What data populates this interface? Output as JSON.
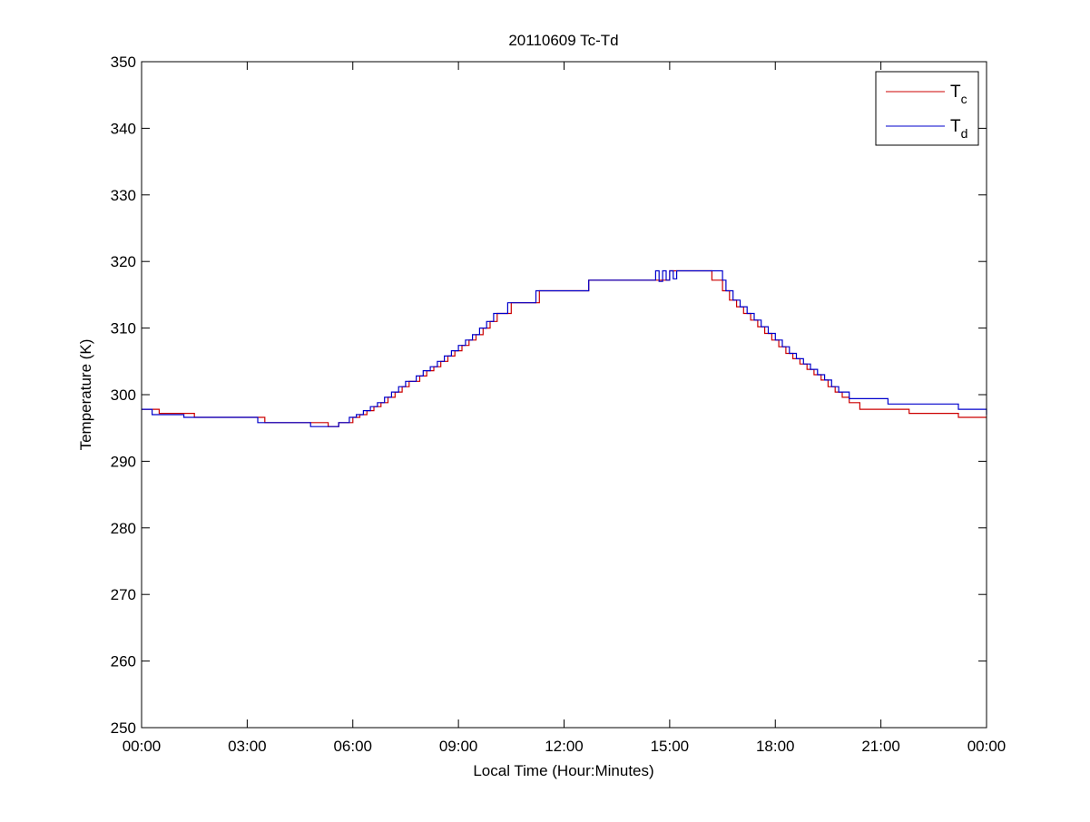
{
  "chart_data": {
    "type": "line",
    "title": "20110609 Tc-Td",
    "xlabel": "Local Time (Hour:Minutes)",
    "ylabel": "Temperature (K)",
    "xlim_hours": [
      0,
      24
    ],
    "ylim": [
      250,
      350
    ],
    "x_ticks": [
      {
        "value": 0,
        "label": "00:00"
      },
      {
        "value": 3,
        "label": "03:00"
      },
      {
        "value": 6,
        "label": "06:00"
      },
      {
        "value": 9,
        "label": "09:00"
      },
      {
        "value": 12,
        "label": "12:00"
      },
      {
        "value": 15,
        "label": "15:00"
      },
      {
        "value": 18,
        "label": "18:00"
      },
      {
        "value": 21,
        "label": "21:00"
      },
      {
        "value": 24,
        "label": "00:00"
      }
    ],
    "y_ticks": [
      250,
      260,
      270,
      280,
      290,
      300,
      310,
      320,
      330,
      340,
      350
    ],
    "grid": false,
    "legend": {
      "position": "top-right",
      "entries": [
        {
          "series": 0,
          "main": "T",
          "sub": "c"
        },
        {
          "series": 1,
          "main": "T",
          "sub": "d"
        }
      ]
    },
    "step": true,
    "series": [
      {
        "name": "Tc",
        "color": "#cc0000",
        "x": [
          0,
          0.25,
          0.5,
          1.2,
          1.5,
          3.2,
          3.5,
          4.8,
          5.3,
          5.6,
          6.0,
          6.2,
          6.4,
          6.6,
          6.8,
          7.0,
          7.2,
          7.4,
          7.6,
          7.9,
          8.1,
          8.3,
          8.5,
          8.7,
          8.9,
          9.1,
          9.3,
          9.5,
          9.7,
          9.9,
          10.1,
          10.5,
          11.3,
          12.7,
          15.0,
          16.0,
          16.2,
          16.5,
          16.7,
          16.9,
          17.1,
          17.3,
          17.5,
          17.7,
          17.9,
          18.1,
          18.3,
          18.5,
          18.7,
          18.9,
          19.1,
          19.3,
          19.5,
          19.7,
          19.9,
          20.1,
          20.4,
          21.2,
          21.8,
          23.0,
          23.2,
          24.0
        ],
        "y": [
          297.8,
          297.8,
          297.2,
          297.2,
          296.6,
          296.6,
          295.8,
          295.8,
          295.2,
          295.8,
          296.6,
          297.0,
          297.6,
          298.2,
          298.8,
          299.6,
          300.4,
          301.2,
          302.0,
          302.8,
          303.6,
          304.2,
          305.0,
          305.8,
          306.6,
          307.4,
          308.2,
          309.0,
          310.0,
          311.0,
          312.2,
          313.8,
          315.6,
          317.2,
          318.6,
          318.6,
          317.2,
          315.6,
          314.2,
          313.2,
          312.2,
          311.2,
          310.2,
          309.2,
          308.2,
          307.2,
          306.2,
          305.4,
          304.6,
          303.8,
          303.0,
          302.2,
          301.2,
          300.4,
          299.6,
          298.8,
          297.8,
          297.8,
          297.2,
          297.2,
          296.6,
          296.6
        ]
      },
      {
        "name": "Td",
        "color": "#0000cc",
        "x": [
          0,
          0.3,
          1.2,
          3.0,
          3.3,
          4.8,
          5.6,
          5.9,
          6.1,
          6.3,
          6.5,
          6.7,
          6.9,
          7.1,
          7.3,
          7.5,
          7.8,
          8.0,
          8.2,
          8.4,
          8.6,
          8.8,
          9.0,
          9.2,
          9.4,
          9.6,
          9.8,
          10.0,
          10.4,
          11.2,
          12.7,
          14.6,
          14.7,
          14.8,
          14.9,
          15.0,
          15.1,
          15.2,
          16.0,
          16.5,
          16.6,
          16.8,
          17.0,
          17.2,
          17.4,
          17.6,
          17.8,
          18.0,
          18.2,
          18.4,
          18.6,
          18.8,
          19.0,
          19.2,
          19.4,
          19.6,
          19.8,
          20.1,
          21.2,
          23.2,
          24.0
        ],
        "y": [
          297.8,
          297.0,
          296.6,
          296.6,
          295.8,
          295.2,
          295.8,
          296.6,
          297.0,
          297.6,
          298.2,
          298.8,
          299.6,
          300.4,
          301.2,
          302.0,
          302.8,
          303.6,
          304.2,
          305.0,
          305.8,
          306.6,
          307.4,
          308.2,
          309.0,
          310.0,
          311.0,
          312.2,
          313.8,
          315.6,
          317.2,
          318.6,
          317.0,
          318.6,
          317.2,
          318.6,
          317.4,
          318.6,
          318.6,
          317.2,
          315.6,
          314.2,
          313.2,
          312.2,
          311.2,
          310.2,
          309.2,
          308.2,
          307.2,
          306.2,
          305.4,
          304.6,
          303.8,
          303.0,
          302.2,
          301.2,
          300.4,
          299.4,
          298.6,
          297.8,
          297.0
        ]
      }
    ]
  }
}
